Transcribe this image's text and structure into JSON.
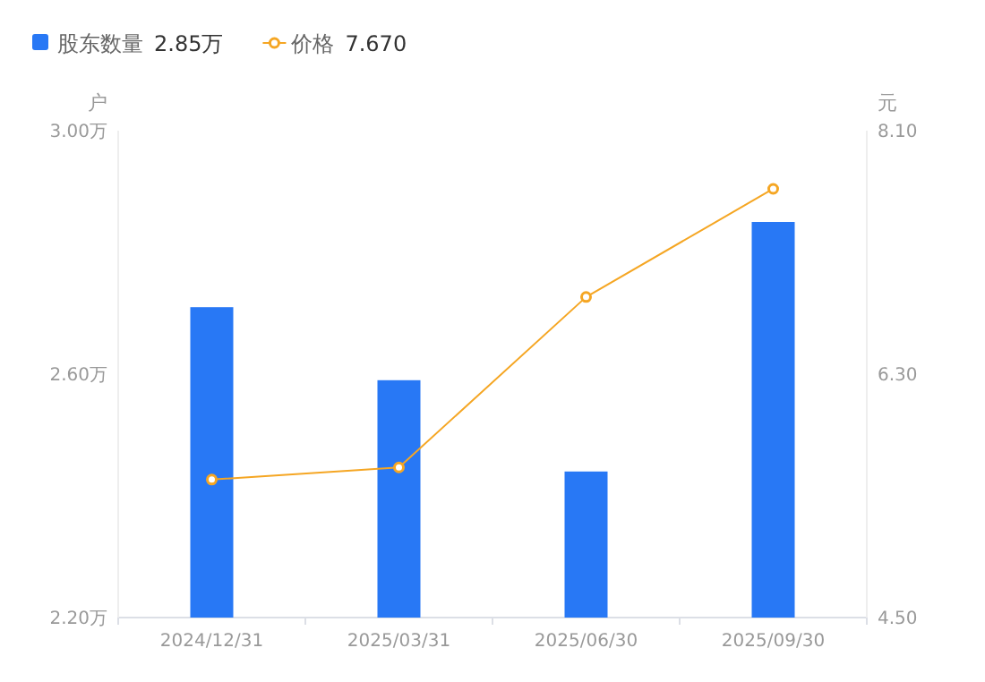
{
  "chart_data": {
    "type": "bar",
    "categories": [
      "2024/12/31",
      "2025/03/31",
      "2025/06/30",
      "2025/09/30"
    ],
    "series": [
      {
        "name": "股东数量",
        "color": "#2878f5",
        "values": [
          2.71,
          2.59,
          2.44,
          2.85
        ]
      },
      {
        "name": "价格",
        "type": "line",
        "axis": "y2",
        "color": "#f5a623",
        "marker": "circle",
        "values": [
          5.52,
          5.61,
          6.87,
          7.67
        ]
      }
    ],
    "ylabel": "户",
    "y2label": "元",
    "ylim": [
      2.2,
      3.0
    ],
    "yticks": [
      {
        "value": 2.2,
        "label": "2.20万"
      },
      {
        "value": 2.6,
        "label": "2.60万"
      },
      {
        "value": 3.0,
        "label": "3.00万"
      }
    ],
    "y2lim": [
      4.5,
      8.1
    ],
    "y2ticks": [
      {
        "value": 4.5,
        "label": "4.50"
      },
      {
        "value": 6.3,
        "label": "6.30"
      },
      {
        "value": 8.1,
        "label": "8.10"
      }
    ],
    "annotations": [
      "2.85万",
      "7.670"
    ],
    "legend": "top left"
  }
}
